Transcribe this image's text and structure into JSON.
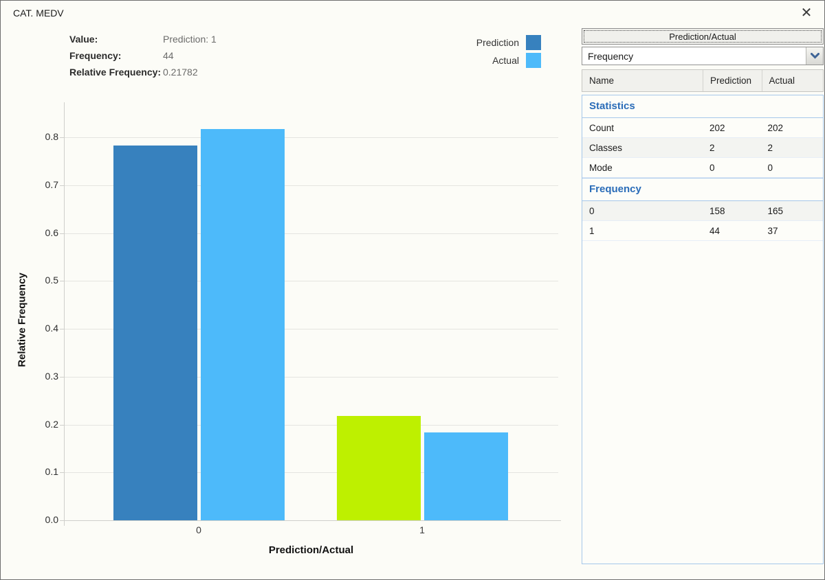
{
  "window": {
    "title": "CAT. MEDV",
    "close_glyph": "✕"
  },
  "info": {
    "rows": [
      {
        "label": "Value:",
        "value": "Prediction: 1"
      },
      {
        "label": "Frequency:",
        "value": "44"
      },
      {
        "label": "Relative Frequency:",
        "value": "0.21782"
      }
    ]
  },
  "legend": {
    "items": [
      {
        "label": "Prediction",
        "color": "#3781be"
      },
      {
        "label": "Actual",
        "color": "#4dbafa"
      }
    ]
  },
  "chart_data": {
    "type": "bar",
    "title": "CAT. MEDV",
    "categories": [
      "0",
      "1"
    ],
    "series": [
      {
        "name": "Prediction",
        "color": "#3781be",
        "values": [
          0.78218,
          0.21782
        ],
        "frequencies": [
          158,
          44
        ]
      },
      {
        "name": "Actual",
        "color": "#4dbafa",
        "values": [
          0.81683,
          0.18317
        ],
        "frequencies": [
          165,
          37
        ]
      }
    ],
    "highlight": {
      "series": "Prediction",
      "category": "1",
      "color": "#bef000"
    },
    "xlabel": "Prediction/Actual",
    "ylabel": "Relative Frequency",
    "ylim": [
      0,
      0.87
    ],
    "yticks": [
      0.0,
      0.1,
      0.2,
      0.3,
      0.4,
      0.5,
      0.6,
      0.7,
      0.8
    ],
    "grid": true,
    "legend_position": "top-right"
  },
  "panel": {
    "button_label": "Prediction/Actual",
    "dropdown_value": "Frequency",
    "table": {
      "headers": [
        "Name",
        "Prediction",
        "Actual"
      ],
      "sections": [
        {
          "title": "Statistics",
          "rows": [
            [
              "Count",
              "202",
              "202"
            ],
            [
              "Classes",
              "2",
              "2"
            ],
            [
              "Mode",
              "0",
              "0"
            ]
          ]
        },
        {
          "title": "Frequency",
          "rows": [
            [
              "0",
              "158",
              "165"
            ],
            [
              "1",
              "44",
              "37"
            ]
          ]
        }
      ]
    }
  },
  "colors": {
    "prediction": "#3781be",
    "actual": "#4dbafa",
    "highlight_selected": "#bef000",
    "section_header_text": "#2a6cb8",
    "table_border": "#a5c7ea"
  }
}
